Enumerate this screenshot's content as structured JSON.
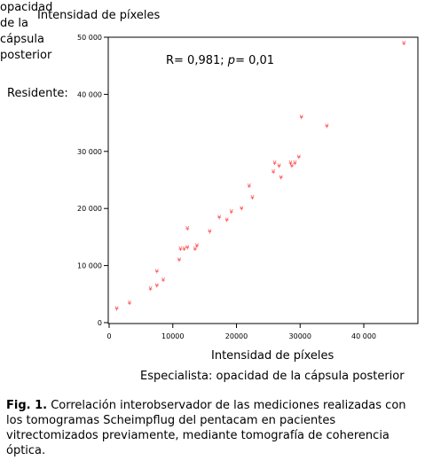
{
  "chart_data": {
    "type": "scatter",
    "y_title": "Intensidad de píxeles",
    "y_side_label": "Residente:",
    "y_side_sub": [
      "opacidad",
      "de la",
      "cápsula",
      "posterior"
    ],
    "x_title": "Intensidad de píxeles",
    "x_sub": "Especialista: opacidad de la cápsula posterior",
    "annotation": {
      "prefix": "R= 0,981; ",
      "p_symbol": "p",
      "suffix": "= 0,01"
    },
    "xlim": [
      0,
      48000
    ],
    "ylim": [
      0,
      51000
    ],
    "x_ticks": [
      0,
      10000,
      20000,
      30000,
      40000
    ],
    "x_tick_labels": [
      "0",
      "10000",
      "20000",
      "30000",
      "40 000"
    ],
    "y_ticks": [
      0,
      10000,
      20000,
      30000,
      40000,
      50000
    ],
    "y_tick_labels": [
      "0",
      "10 000",
      "20 000",
      "30 000",
      "40 000",
      "50 000"
    ],
    "marker_color": "#ff3b3b",
    "points": [
      {
        "x": 1200,
        "y": 2500
      },
      {
        "x": 3200,
        "y": 3500
      },
      {
        "x": 6500,
        "y": 6000
      },
      {
        "x": 7500,
        "y": 6500
      },
      {
        "x": 8500,
        "y": 7500
      },
      {
        "x": 7500,
        "y": 9000
      },
      {
        "x": 11000,
        "y": 11000
      },
      {
        "x": 11200,
        "y": 13000
      },
      {
        "x": 11800,
        "y": 13000
      },
      {
        "x": 12300,
        "y": 13200
      },
      {
        "x": 13500,
        "y": 13000
      },
      {
        "x": 13800,
        "y": 13500
      },
      {
        "x": 12300,
        "y": 16500
      },
      {
        "x": 15800,
        "y": 16000
      },
      {
        "x": 17300,
        "y": 18500
      },
      {
        "x": 18500,
        "y": 18000
      },
      {
        "x": 19200,
        "y": 19500
      },
      {
        "x": 20800,
        "y": 20000
      },
      {
        "x": 22000,
        "y": 24000
      },
      {
        "x": 22500,
        "y": 22000
      },
      {
        "x": 25800,
        "y": 26500
      },
      {
        "x": 26000,
        "y": 28000
      },
      {
        "x": 26700,
        "y": 27500
      },
      {
        "x": 27000,
        "y": 25500
      },
      {
        "x": 28500,
        "y": 28000
      },
      {
        "x": 28700,
        "y": 27500
      },
      {
        "x": 29200,
        "y": 28000
      },
      {
        "x": 29800,
        "y": 29000
      },
      {
        "x": 30200,
        "y": 36000
      },
      {
        "x": 34200,
        "y": 34500
      },
      {
        "x": 46300,
        "y": 49000
      }
    ]
  },
  "caption": {
    "label": "Fig.  1.",
    "text": " Correlación interobservador de las mediciones realizadas con los tomogramas Scheimpflug del pentacam en pacientes vitrectomizados previamente, mediante tomografía de coherencia óptica."
  }
}
